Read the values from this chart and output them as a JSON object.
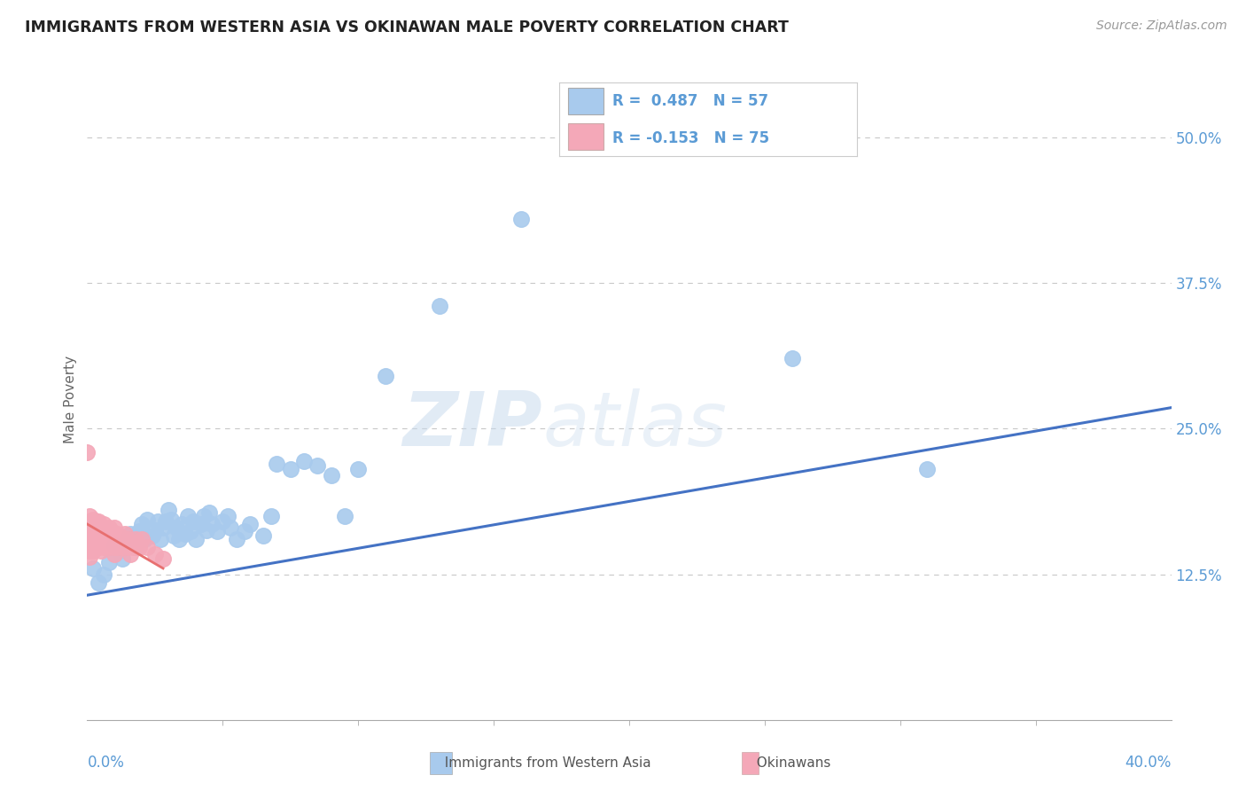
{
  "title": "IMMIGRANTS FROM WESTERN ASIA VS OKINAWAN MALE POVERTY CORRELATION CHART",
  "source": "Source: ZipAtlas.com",
  "ylabel": "Male Poverty",
  "watermark_zip": "ZIP",
  "watermark_atlas": "atlas",
  "xlim": [
    0.0,
    0.4
  ],
  "ylim": [
    0.0,
    0.55
  ],
  "xtick_labels": [
    "0.0%",
    "40.0%"
  ],
  "xtick_positions": [
    0.0,
    0.4
  ],
  "ytick_labels": [
    "12.5%",
    "25.0%",
    "37.5%",
    "50.0%"
  ],
  "ytick_positions": [
    0.125,
    0.25,
    0.375,
    0.5
  ],
  "legend_r_blue": "R =  0.487",
  "legend_n_blue": "N = 57",
  "legend_r_pink": "R = -0.153",
  "legend_n_pink": "N = 75",
  "blue_color": "#A8CAED",
  "pink_color": "#F4A8B8",
  "blue_line_color": "#4472C4",
  "pink_line_color": "#E87070",
  "background_color": "#FFFFFF",
  "grid_color": "#C8C8C8",
  "blue_scatter": [
    [
      0.002,
      0.13
    ],
    [
      0.004,
      0.118
    ],
    [
      0.006,
      0.125
    ],
    [
      0.008,
      0.135
    ],
    [
      0.01,
      0.15
    ],
    [
      0.012,
      0.145
    ],
    [
      0.013,
      0.138
    ],
    [
      0.015,
      0.155
    ],
    [
      0.016,
      0.16
    ],
    [
      0.018,
      0.148
    ],
    [
      0.019,
      0.162
    ],
    [
      0.02,
      0.168
    ],
    [
      0.021,
      0.155
    ],
    [
      0.022,
      0.172
    ],
    [
      0.024,
      0.158
    ],
    [
      0.025,
      0.163
    ],
    [
      0.026,
      0.17
    ],
    [
      0.027,
      0.155
    ],
    [
      0.028,
      0.165
    ],
    [
      0.029,
      0.17
    ],
    [
      0.03,
      0.18
    ],
    [
      0.031,
      0.172
    ],
    [
      0.032,
      0.158
    ],
    [
      0.033,
      0.165
    ],
    [
      0.034,
      0.155
    ],
    [
      0.035,
      0.168
    ],
    [
      0.036,
      0.16
    ],
    [
      0.037,
      0.175
    ],
    [
      0.038,
      0.162
    ],
    [
      0.039,
      0.17
    ],
    [
      0.04,
      0.155
    ],
    [
      0.042,
      0.168
    ],
    [
      0.043,
      0.175
    ],
    [
      0.044,
      0.163
    ],
    [
      0.045,
      0.178
    ],
    [
      0.046,
      0.168
    ],
    [
      0.048,
      0.162
    ],
    [
      0.05,
      0.17
    ],
    [
      0.052,
      0.175
    ],
    [
      0.053,
      0.165
    ],
    [
      0.055,
      0.155
    ],
    [
      0.058,
      0.162
    ],
    [
      0.06,
      0.168
    ],
    [
      0.065,
      0.158
    ],
    [
      0.068,
      0.175
    ],
    [
      0.07,
      0.22
    ],
    [
      0.075,
      0.215
    ],
    [
      0.08,
      0.222
    ],
    [
      0.085,
      0.218
    ],
    [
      0.09,
      0.21
    ],
    [
      0.095,
      0.175
    ],
    [
      0.1,
      0.215
    ],
    [
      0.11,
      0.295
    ],
    [
      0.13,
      0.355
    ],
    [
      0.16,
      0.43
    ],
    [
      0.26,
      0.31
    ],
    [
      0.31,
      0.215
    ]
  ],
  "pink_scatter": [
    [
      0.0,
      0.23
    ],
    [
      0.001,
      0.155
    ],
    [
      0.001,
      0.14
    ],
    [
      0.001,
      0.16
    ],
    [
      0.001,
      0.148
    ],
    [
      0.001,
      0.17
    ],
    [
      0.001,
      0.165
    ],
    [
      0.001,
      0.158
    ],
    [
      0.001,
      0.175
    ],
    [
      0.001,
      0.145
    ],
    [
      0.002,
      0.152
    ],
    [
      0.002,
      0.158
    ],
    [
      0.002,
      0.145
    ],
    [
      0.002,
      0.165
    ],
    [
      0.002,
      0.172
    ],
    [
      0.002,
      0.148
    ],
    [
      0.002,
      0.155
    ],
    [
      0.002,
      0.162
    ],
    [
      0.002,
      0.17
    ],
    [
      0.003,
      0.16
    ],
    [
      0.003,
      0.152
    ],
    [
      0.003,
      0.165
    ],
    [
      0.003,
      0.148
    ],
    [
      0.003,
      0.155
    ],
    [
      0.003,
      0.17
    ],
    [
      0.003,
      0.158
    ],
    [
      0.004,
      0.162
    ],
    [
      0.004,
      0.155
    ],
    [
      0.004,
      0.148
    ],
    [
      0.004,
      0.165
    ],
    [
      0.004,
      0.152
    ],
    [
      0.004,
      0.17
    ],
    [
      0.005,
      0.158
    ],
    [
      0.005,
      0.15
    ],
    [
      0.005,
      0.162
    ],
    [
      0.005,
      0.145
    ],
    [
      0.005,
      0.155
    ],
    [
      0.006,
      0.148
    ],
    [
      0.006,
      0.16
    ],
    [
      0.006,
      0.152
    ],
    [
      0.006,
      0.168
    ],
    [
      0.007,
      0.155
    ],
    [
      0.007,
      0.148
    ],
    [
      0.007,
      0.162
    ],
    [
      0.007,
      0.152
    ],
    [
      0.008,
      0.158
    ],
    [
      0.008,
      0.148
    ],
    [
      0.008,
      0.165
    ],
    [
      0.009,
      0.155
    ],
    [
      0.009,
      0.162
    ],
    [
      0.01,
      0.148
    ],
    [
      0.01,
      0.158
    ],
    [
      0.01,
      0.152
    ],
    [
      0.01,
      0.165
    ],
    [
      0.01,
      0.142
    ],
    [
      0.011,
      0.155
    ],
    [
      0.011,
      0.148
    ],
    [
      0.011,
      0.16
    ],
    [
      0.012,
      0.152
    ],
    [
      0.012,
      0.158
    ],
    [
      0.013,
      0.148
    ],
    [
      0.013,
      0.155
    ],
    [
      0.014,
      0.152
    ],
    [
      0.014,
      0.16
    ],
    [
      0.015,
      0.148
    ],
    [
      0.015,
      0.155
    ],
    [
      0.016,
      0.15
    ],
    [
      0.016,
      0.142
    ],
    [
      0.017,
      0.148
    ],
    [
      0.018,
      0.155
    ],
    [
      0.019,
      0.148
    ],
    [
      0.02,
      0.155
    ],
    [
      0.022,
      0.148
    ],
    [
      0.025,
      0.142
    ],
    [
      0.028,
      0.138
    ]
  ],
  "blue_trendline": [
    [
      0.0,
      0.107
    ],
    [
      0.4,
      0.268
    ]
  ],
  "pink_trendline": [
    [
      0.0,
      0.168
    ],
    [
      0.028,
      0.13
    ]
  ]
}
